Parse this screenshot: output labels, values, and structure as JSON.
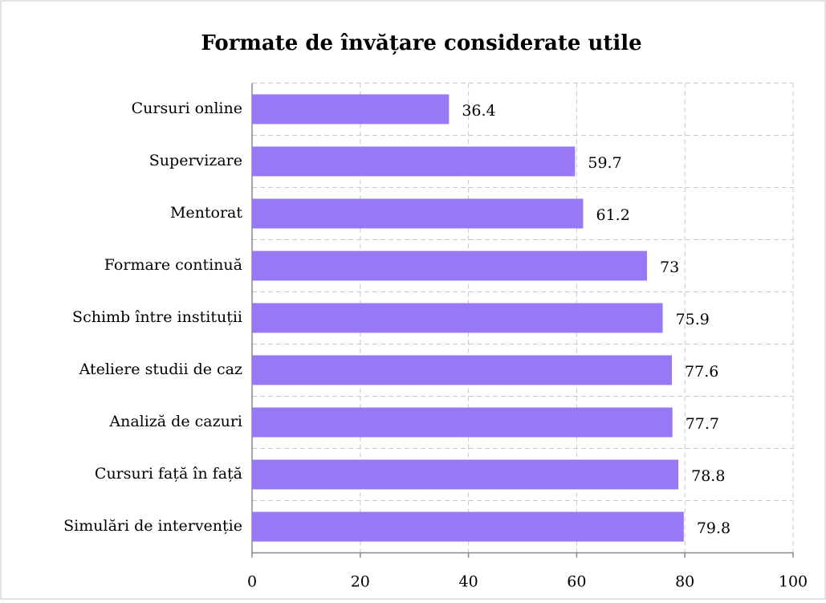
{
  "chart_data": {
    "type": "hbar",
    "title": "Formate de învățare considerate utile",
    "categories": [
      "Cursuri online",
      "Supervizare",
      "Mentorat",
      "Formare continuă",
      "Schimb între instituții",
      "Ateliere studii de caz",
      "Analiză de cazuri",
      "Cursuri față în față",
      "Simulări de intervenție"
    ],
    "values": [
      36.4,
      59.7,
      61.2,
      73,
      75.9,
      77.6,
      77.7,
      78.8,
      79.8
    ],
    "color": "#9778f5",
    "xlim": [
      0,
      100
    ],
    "xticks": [
      0,
      20,
      40,
      60,
      80,
      100
    ],
    "grid": true
  }
}
